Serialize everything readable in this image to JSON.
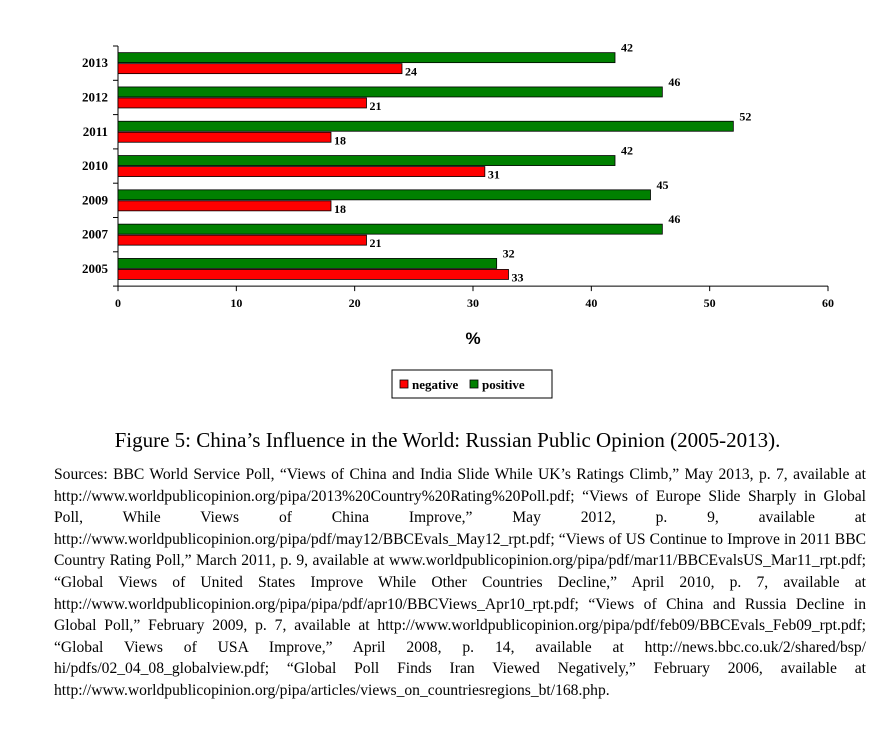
{
  "chart_data": {
    "type": "bar",
    "orientation": "horizontal",
    "categories": [
      "2013",
      "2012",
      "2011",
      "2010",
      "2009",
      "2007",
      "2005"
    ],
    "series": [
      {
        "name": "positive",
        "color": "#008000",
        "values": [
          42,
          46,
          52,
          42,
          45,
          46,
          32
        ]
      },
      {
        "name": "negative",
        "color": "#ff0000",
        "values": [
          24,
          21,
          18,
          31,
          18,
          21,
          33
        ]
      }
    ],
    "legend": [
      {
        "name": "negative",
        "color": "#ff0000"
      },
      {
        "name": "positive",
        "color": "#008000"
      }
    ],
    "legend_placement": "bottom-center",
    "xlabel": "%",
    "ylabel": "",
    "xlim": [
      0,
      60
    ],
    "xticks": [
      0,
      10,
      20,
      30,
      40,
      50,
      60
    ],
    "grid": false,
    "data_labels": true
  },
  "caption": "Figure 5: China’s Influence in the World: Russian Public Opinion (2005-2013).",
  "sources": "Sources: BBC World Service Poll, “Views of China and India Slide While UK’s Ratings Climb,” May 2013, p. 7, available at http://www.worldpublicopinion.org/pipa/2013%20Country%20Rating%20Poll.pdf; “Views of Europe Slide Sharply in Global Poll, While Views of China Improve,” May 2012, p. 9, available at http://www.worldpublicopinion.org/pipa/pdf/may12/BBCEvals_May12_rpt.pdf; “Views of US Continue to Improve in 2011 BBC Country Rating Poll,” March 2011, p. 9, available at www.worldpublicopinion.org/pipa/pdf/mar11/BBCEvalsUS_Mar11_rpt.pdf; “Global Views of United States Improve While Other Countries Decline,” April 2010, p. 7, available at http://www.worldpublicopinion.org/pipa/pipa/pdf/apr10/BBCViews_Apr10_rpt.pdf; “Views of China and Russia Decline in Global Poll,” February 2009, p. 7, available at http://www.worldpublicopinion.org/pipa/pdf/feb09/BBCEvals_Feb09_rpt.pdf; “Global Views of USA Improve,” April 2008, p. 14, available at http://news.bbc.co.uk/2/shared/bsp/ hi/pdfs/02_04_08_globalview.pdf; “Global Poll Finds Iran Viewed Negatively,” February 2006, available at http://www.worldpublicopinion.org/pipa/articles/views_on_countriesregions_bt/168.php."
}
